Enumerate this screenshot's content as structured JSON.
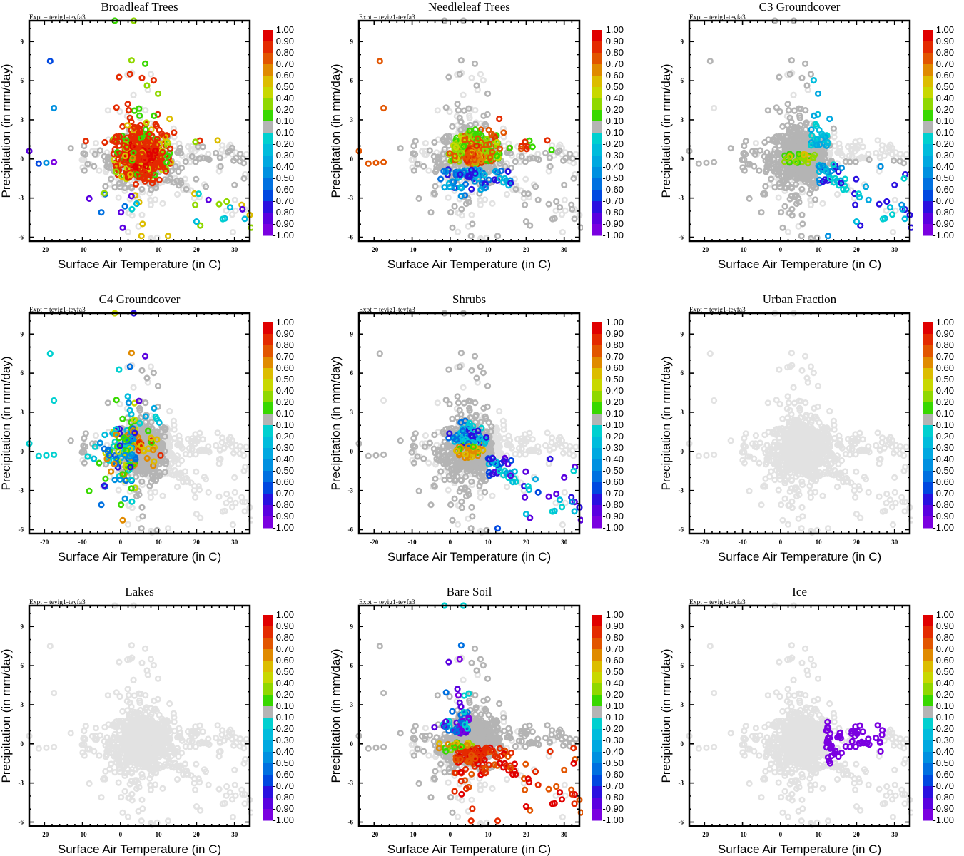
{
  "chart_data": {
    "type": "scatter",
    "figure_layout": "3x3 grid of scatter panels",
    "shared": {
      "annotation": "Expt = teyig1-teyfa3",
      "xlabel": "Surface Air Temperature (in C)",
      "ylabel": "Precipitation (in mm/day)",
      "xlim": [
        -24,
        34
      ],
      "ylim": [
        -6.3,
        10.6
      ],
      "xticks": [
        "-20",
        "-10",
        "0",
        "10",
        "20",
        "30"
      ],
      "xtick_values": [
        -20,
        -10,
        0,
        10,
        20,
        30
      ],
      "yticks": [
        "9",
        "6",
        "3",
        "0",
        "-3",
        "-6"
      ],
      "ytick_values": [
        9,
        6,
        3,
        0,
        -3,
        -6
      ],
      "colorbar": {
        "labels": [
          "1.00",
          "0.90",
          "0.80",
          "0.70",
          "0.60",
          "0.50",
          "0.40",
          "0.20",
          "0.10",
          "-0.10",
          "-0.20",
          "-0.30",
          "-0.40",
          "-0.50",
          "-0.60",
          "-0.70",
          "-0.80",
          "-0.90",
          "-1.00"
        ],
        "colors": [
          "#e00000",
          "#e42a00",
          "#e25500",
          "#e08a00",
          "#dcbd00",
          "#c8d800",
          "#90d800",
          "#38d800",
          "#b4b4b4",
          "#00d0d0",
          "#00bcdc",
          "#00a8e0",
          "#0090e0",
          "#0070e0",
          "#0048e0",
          "#2a10e0",
          "#5a00e0",
          "#7a00e0"
        ]
      },
      "masked_point_color": "#e2e2e2",
      "neutral_point_color": "#b4b4b4"
    },
    "panels": [
      {
        "title": "Broadleaf Trees",
        "description": "Dense cluster near (5C, 0.5 mm/day) dominated by strong positive values (0.8-1.0, red); scattered green/yellow; a few negative (blue/purple) outliers at cold and low-precipitation extremes"
      },
      {
        "title": "Needleleaf Trees",
        "description": "Core cluster mostly orange/red (0.6-0.8) surrounded by green (0.1-0.4); negative blue points below the cluster at lower precipitation"
      },
      {
        "title": "C3 Groundcover",
        "description": "Mostly neutral gray; cyan/blue negative values (-0.2 to -0.6) along a warm, declining-precipitation arm; a few green near 0 mm/day"
      },
      {
        "title": "C4 Groundcover",
        "description": "Mostly neutral gray core; mixed cyan, blue, green, orange points at the cluster's cold edge"
      },
      {
        "title": "Shrubs",
        "description": "Neutral gray core; orange band near 0 mm/day; cyan to purple negative points on the warm-dry arm"
      },
      {
        "title": "Urban Fraction",
        "description": "All points masked (light gray); no significant values"
      },
      {
        "title": "Lakes",
        "description": "All points masked (light gray); no significant values"
      },
      {
        "title": "Bare Soil",
        "description": "Gray core; purple/blue negatives above cluster (higher precipitation); strong red positives (0.9-1.0) below 0 mm/day extending to warm-dry"
      },
      {
        "title": "Ice",
        "description": "Masked light gray background; cluster of purple (-1.0) points at roughly 12-27C, -1.5 to 1.5 mm/day"
      }
    ]
  }
}
